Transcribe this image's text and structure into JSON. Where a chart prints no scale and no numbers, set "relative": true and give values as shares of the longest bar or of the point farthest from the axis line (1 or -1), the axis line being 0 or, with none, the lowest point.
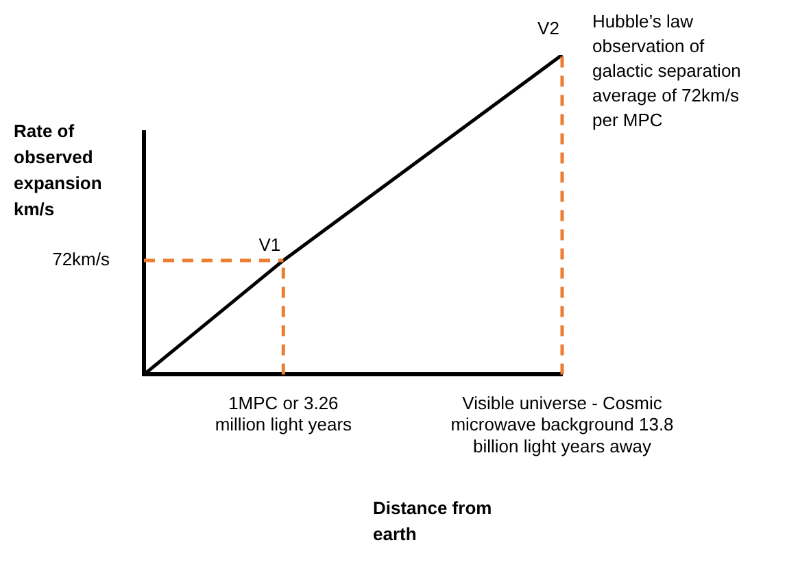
{
  "chart_data": {
    "type": "line",
    "relative": true,
    "xlabel": "Distance from earth",
    "ylabel": "Rate of observed expansion km/s",
    "categories": [
      null,
      "1MPC or 3.26 million light years",
      null,
      "Visible universe - Cosmic microwave background 13.8 billion light years away"
    ],
    "series": [
      {
        "color": "#000000",
        "values": [
          0,
          0.357,
          null,
          1
        ]
      }
    ],
    "ref_lines": [
      {
        "axis": "y",
        "value": 0.357,
        "label": "72km/s",
        "color": "#ed7d31",
        "line_style": "dashed"
      }
    ],
    "annotations": [
      {
        "text": "V1",
        "x": "1MPC or 3.26 million light years",
        "y": 0.357
      },
      {
        "text": "V2",
        "x": "Visible universe - Cosmic microwave background 13.8 billion light years away",
        "y": 1
      },
      "Hubble’s law observation of galactic separation average of 72km/s per MPC"
    ],
    "legend": false,
    "marker": "none",
    "line_style": "solid"
  }
}
